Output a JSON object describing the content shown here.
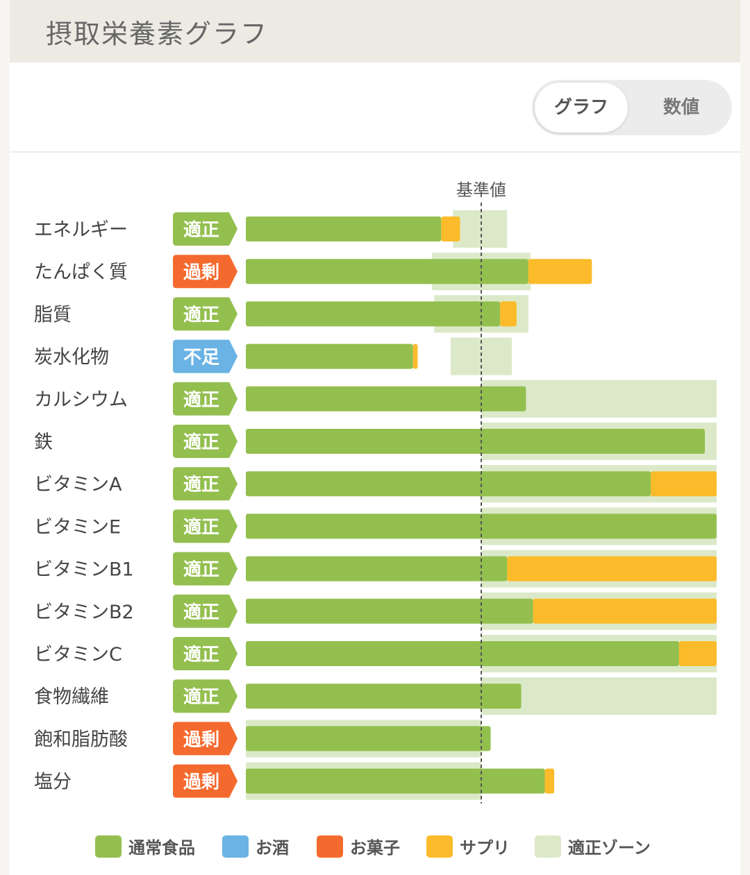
{
  "header": {
    "title": "摂取栄養素グラフ"
  },
  "toggle": {
    "graph_label": "グラフ",
    "value_label": "数値"
  },
  "colors": {
    "food": "#93bf4f",
    "alcohol": "#6ab3e4",
    "snack": "#f46a2e",
    "supplement": "#fbbb2a",
    "zone": "#dce9c9",
    "status_ok": "#93bf4f",
    "status_over": "#f46a2e",
    "status_under": "#6ab3e4"
  },
  "chart_data": {
    "type": "bar",
    "orientation": "horizontal",
    "stacked": true,
    "reference_label": "基準値",
    "reference_value": 100,
    "xlim": [
      0,
      200
    ],
    "categories": [
      "エネルギー",
      "たんぱく質",
      "脂質",
      "炭水化物",
      "カルシウム",
      "鉄",
      "ビタミンA",
      "ビタミンE",
      "ビタミンB1",
      "ビタミンB2",
      "ビタミンC",
      "食物繊維",
      "飽和脂肪酸",
      "塩分"
    ],
    "status": [
      "適正",
      "過剰",
      "適正",
      "不足",
      "適正",
      "適正",
      "適正",
      "適正",
      "適正",
      "適正",
      "適正",
      "適正",
      "過剰",
      "過剰"
    ],
    "status_type": [
      "ok",
      "over",
      "ok",
      "under",
      "ok",
      "ok",
      "ok",
      "ok",
      "ok",
      "ok",
      "ok",
      "ok",
      "over",
      "over"
    ],
    "series": [
      {
        "name": "通常食品",
        "values": [
          83,
          120,
          108,
          71,
          119,
          195,
          172,
          200,
          111,
          122,
          184,
          117,
          104,
          127
        ]
      },
      {
        "name": "お酒",
        "values": [
          0,
          0,
          0,
          0,
          0,
          0,
          0,
          0,
          0,
          0,
          0,
          0,
          0,
          0
        ]
      },
      {
        "name": "お菓子",
        "values": [
          0,
          0,
          0,
          0,
          0,
          0,
          0,
          0,
          0,
          0,
          0,
          0,
          0,
          0
        ]
      },
      {
        "name": "サプリ",
        "values": [
          8,
          27,
          7,
          2,
          0,
          0,
          28,
          0,
          89,
          78,
          16,
          0,
          0,
          4
        ]
      }
    ],
    "zones": [
      [
        88,
        111
      ],
      [
        79,
        121
      ],
      [
        80,
        120
      ],
      [
        87,
        113
      ],
      [
        100,
        200
      ],
      [
        100,
        200
      ],
      [
        100,
        200
      ],
      [
        100,
        200
      ],
      [
        100,
        200
      ],
      [
        100,
        200
      ],
      [
        100,
        200
      ],
      [
        100,
        200
      ],
      [
        0,
        100
      ],
      [
        0,
        100
      ]
    ],
    "legend_placement": "bottom",
    "legend": [
      "通常食品",
      "お酒",
      "お菓子",
      "サプリ",
      "適正ゾーン"
    ]
  }
}
